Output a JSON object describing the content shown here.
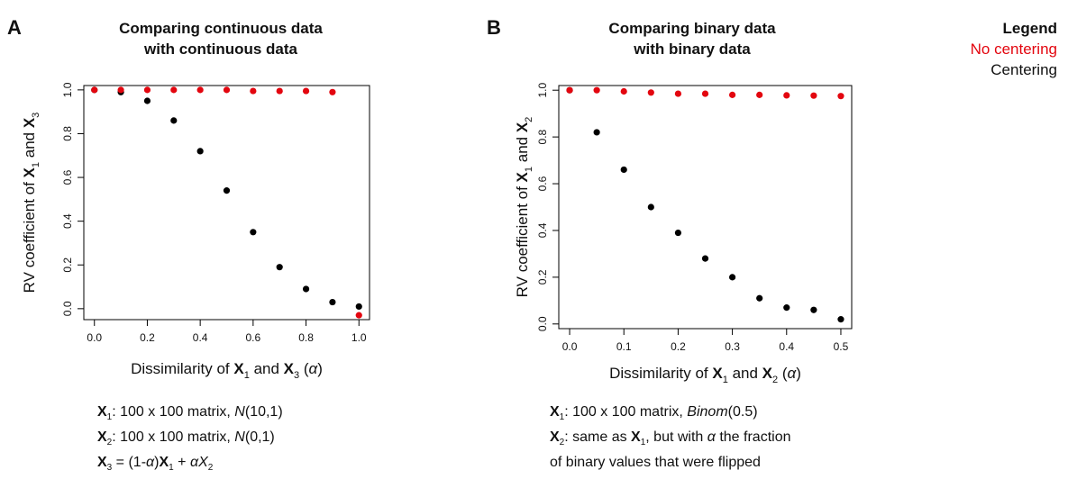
{
  "panels": [
    {
      "letter": "A",
      "title_line1": "Comparing continuous data",
      "title_line2": "with continuous data",
      "caption": {
        "line1": {
          "var": "X",
          "sub": "1",
          "text": ": 100 x 100 matrix, ",
          "ital": "N",
          "after": "(10,1)"
        },
        "line2": {
          "var": "X",
          "sub": "2",
          "text": ": 100 x 100 matrix, ",
          "ital": "N",
          "after": "(0,1)"
        },
        "line3": {
          "var": "X",
          "sub": "3",
          "eq": " = (1-",
          "alpha": "α",
          "close": ")",
          "var_b": "X",
          "sub_b": "1",
          "plus": " + ",
          "alpha2": "α",
          "var_c": "X",
          "sub_c": "2"
        }
      }
    },
    {
      "letter": "B",
      "title_line1": "Comparing binary data",
      "title_line2": "with binary data",
      "caption": {
        "line1": {
          "var": "X",
          "sub": "1",
          "text": ": 100 x 100 matrix, ",
          "ital": "Binom",
          "after": "(0.5)"
        },
        "line2": {
          "var": "X",
          "sub": "2",
          "text": ": same as ",
          "var_b": "X",
          "sub_b": "1",
          "text2": ", but with ",
          "alpha": "α",
          "text3": " the fraction"
        },
        "line3": {
          "text": "of binary values that were flipped"
        }
      }
    }
  ],
  "legend": {
    "title": "Legend",
    "no_centering": "No centering",
    "centering": "Centering"
  },
  "colors": {
    "no_centering": "#e3060f",
    "centering": "#000000"
  },
  "chart_data": [
    {
      "type": "scatter",
      "xlabel": {
        "pre": "Dissimilarity of ",
        "v1": "X",
        "s1": "1",
        "mid": " and ",
        "v2": "X",
        "s2": "3",
        "post": " (",
        "alpha": "α",
        "end": ")"
      },
      "ylabel": {
        "pre": "RV coefficient of ",
        "v1": "X",
        "s1": "1",
        "mid": " and ",
        "v2": "X",
        "s2": "3"
      },
      "xlim": [
        -0.04,
        1.04
      ],
      "ylim": [
        -0.05,
        1.02
      ],
      "x_ticks": [
        0.0,
        0.2,
        0.4,
        0.6,
        0.8,
        1.0
      ],
      "x_tick_labels": [
        "0.0",
        "0.2",
        "0.4",
        "0.6",
        "0.8",
        "1.0"
      ],
      "y_ticks": [
        0.0,
        0.2,
        0.4,
        0.6,
        0.8,
        1.0
      ],
      "y_tick_labels": [
        "0.0",
        "0.2",
        "0.4",
        "0.6",
        "0.8",
        "1.0"
      ],
      "series": [
        {
          "name": "Centering",
          "x": [
            0.0,
            0.1,
            0.2,
            0.3,
            0.4,
            0.5,
            0.6,
            0.7,
            0.8,
            0.9,
            1.0
          ],
          "y": [
            1.0,
            0.99,
            0.95,
            0.86,
            0.72,
            0.54,
            0.35,
            0.19,
            0.09,
            0.03,
            0.01
          ]
        },
        {
          "name": "No centering",
          "x": [
            0.0,
            0.1,
            0.2,
            0.3,
            0.4,
            0.5,
            0.6,
            0.7,
            0.8,
            0.9,
            1.0
          ],
          "y": [
            1.0,
            1.0,
            1.0,
            1.0,
            1.0,
            1.0,
            0.995,
            0.995,
            0.995,
            0.99,
            -0.03
          ]
        }
      ]
    },
    {
      "type": "scatter",
      "xlabel": {
        "pre": "Dissimilarity of ",
        "v1": "X",
        "s1": "1",
        "mid": " and ",
        "v2": "X",
        "s2": "2",
        "post": " (",
        "alpha": "α",
        "end": ")"
      },
      "ylabel": {
        "pre": "RV coefficient of ",
        "v1": "X",
        "s1": "1",
        "mid": " and ",
        "v2": "X",
        "s2": "2"
      },
      "xlim": [
        -0.02,
        0.52
      ],
      "ylim": [
        -0.02,
        1.02
      ],
      "x_ticks": [
        0.0,
        0.1,
        0.2,
        0.3,
        0.4,
        0.5
      ],
      "x_tick_labels": [
        "0.0",
        "0.1",
        "0.2",
        "0.3",
        "0.4",
        "0.5"
      ],
      "y_ticks": [
        0.0,
        0.2,
        0.4,
        0.6,
        0.8,
        1.0
      ],
      "y_tick_labels": [
        "0.0",
        "0.2",
        "0.4",
        "0.6",
        "0.8",
        "1.0"
      ],
      "series": [
        {
          "name": "Centering",
          "x": [
            0.0,
            0.05,
            0.1,
            0.15,
            0.2,
            0.25,
            0.3,
            0.35,
            0.4,
            0.45,
            0.5
          ],
          "y": [
            1.0,
            0.82,
            0.66,
            0.5,
            0.39,
            0.28,
            0.2,
            0.11,
            0.07,
            0.06,
            0.02
          ]
        },
        {
          "name": "No centering",
          "x": [
            0.0,
            0.05,
            0.1,
            0.15,
            0.2,
            0.25,
            0.3,
            0.35,
            0.4,
            0.45,
            0.5
          ],
          "y": [
            1.0,
            1.0,
            0.995,
            0.99,
            0.985,
            0.985,
            0.98,
            0.98,
            0.978,
            0.977,
            0.975
          ]
        }
      ]
    }
  ]
}
